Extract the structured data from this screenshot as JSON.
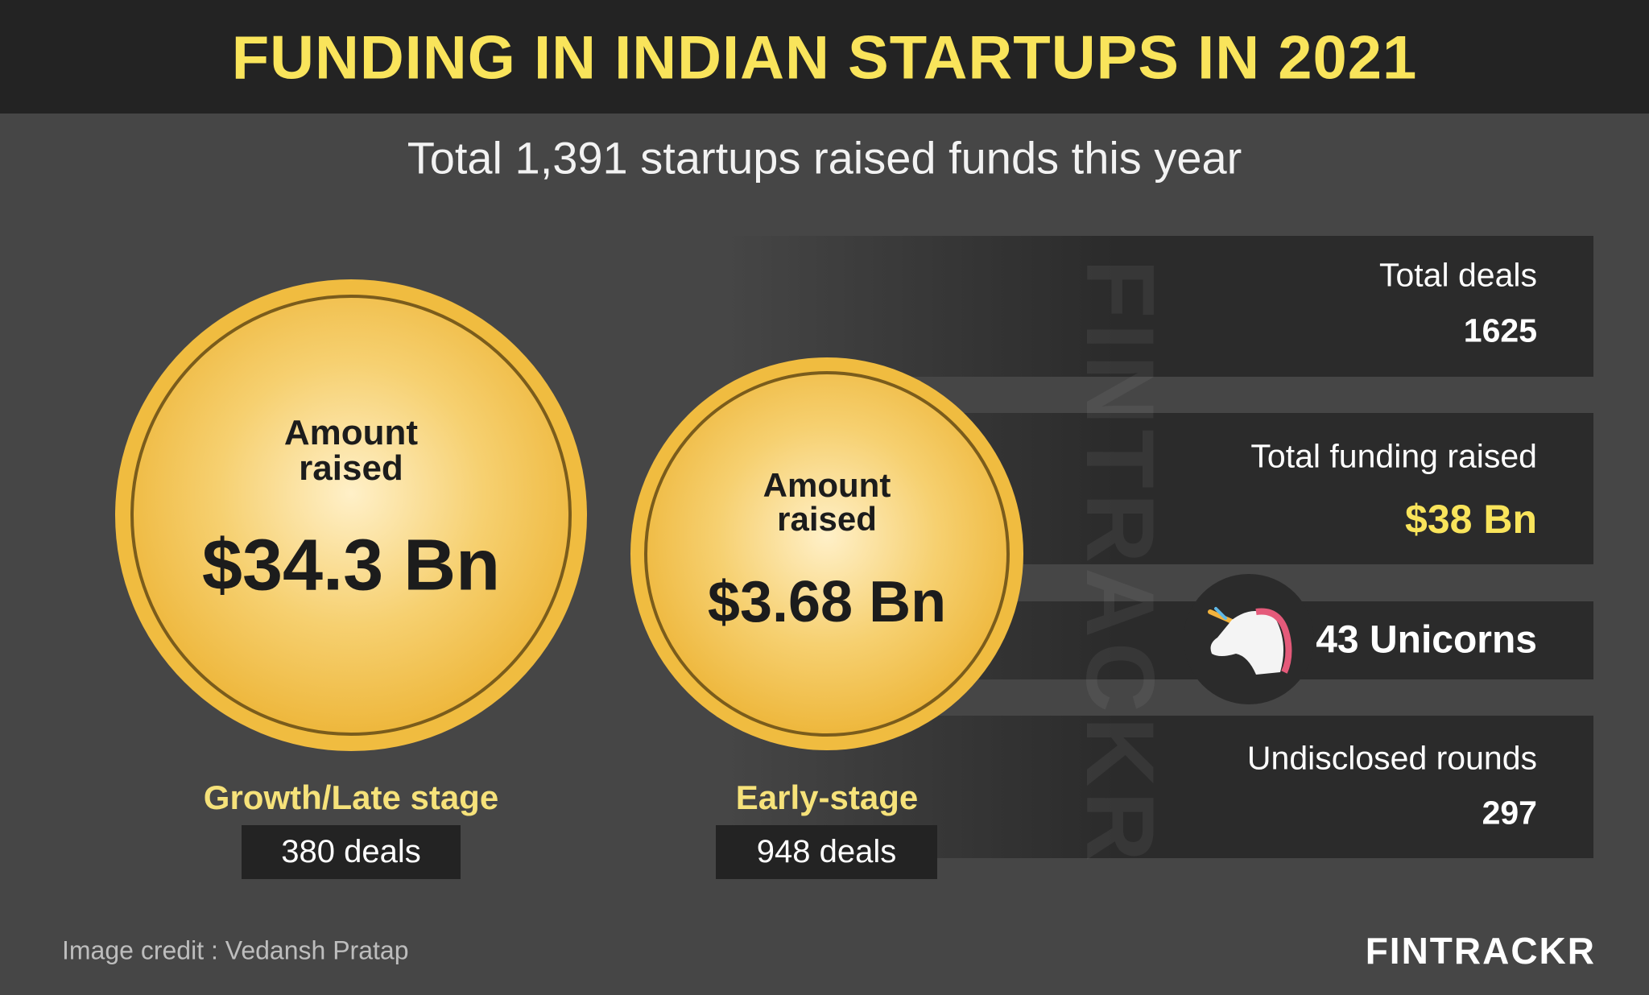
{
  "header": {
    "title": "FUNDING IN INDIAN STARTUPS IN 2021"
  },
  "subtitle": "Total 1,391 startups raised funds this year",
  "stages": [
    {
      "amount_label": "Amount raised",
      "amount": "$34.3 Bn",
      "stage": "Growth/Late stage",
      "deals": "380 deals"
    },
    {
      "amount_label": "Amount raised",
      "amount": "$3.68 Bn",
      "stage": "Early-stage",
      "deals": "948 deals"
    }
  ],
  "stats": [
    {
      "label": "Total deals",
      "value": "1625"
    },
    {
      "label": "Total funding raised",
      "value": "$38 Bn"
    },
    {
      "label": "43 Unicorns"
    },
    {
      "label": "Undisclosed rounds",
      "value": "297"
    }
  ],
  "watermark": "FINTRACKR",
  "footer": {
    "credit": "Image credit : Vedansh Pratap",
    "logo": "FINTRACKR"
  }
}
